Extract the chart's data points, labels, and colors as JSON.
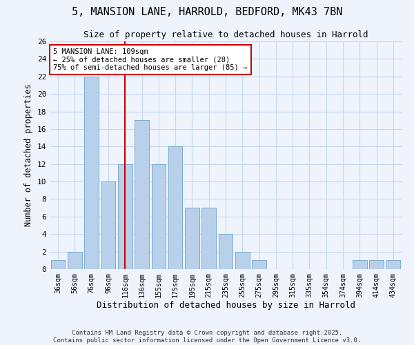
{
  "title1": "5, MANSION LANE, HARROLD, BEDFORD, MK43 7BN",
  "title2": "Size of property relative to detached houses in Harrold",
  "xlabel": "Distribution of detached houses by size in Harrold",
  "ylabel": "Number of detached properties",
  "bin_labels": [
    "36sqm",
    "56sqm",
    "76sqm",
    "96sqm",
    "116sqm",
    "136sqm",
    "155sqm",
    "175sqm",
    "195sqm",
    "215sqm",
    "235sqm",
    "255sqm",
    "275sqm",
    "295sqm",
    "315sqm",
    "335sqm",
    "354sqm",
    "374sqm",
    "394sqm",
    "414sqm",
    "434sqm"
  ],
  "bin_values": [
    1,
    2,
    22,
    10,
    12,
    17,
    12,
    14,
    7,
    7,
    4,
    2,
    1,
    0,
    0,
    0,
    0,
    0,
    1,
    1,
    1
  ],
  "bar_color": "#b8d0ea",
  "bar_edgecolor": "#7aadd4",
  "vline_x_index": 4,
  "vline_color": "#cc0000",
  "annotation_text": "5 MANSION LANE: 109sqm\n← 25% of detached houses are smaller (28)\n75% of semi-detached houses are larger (85) →",
  "annotation_box_edgecolor": "#cc0000",
  "annotation_box_facecolor": "#ffffff",
  "ylim": [
    0,
    26
  ],
  "yticks": [
    0,
    2,
    4,
    6,
    8,
    10,
    12,
    14,
    16,
    18,
    20,
    22,
    24,
    26
  ],
  "footer1": "Contains HM Land Registry data © Crown copyright and database right 2025.",
  "footer2": "Contains public sector information licensed under the Open Government Licence v3.0.",
  "bg_color": "#eef3fc",
  "grid_color": "#c8d8f0"
}
